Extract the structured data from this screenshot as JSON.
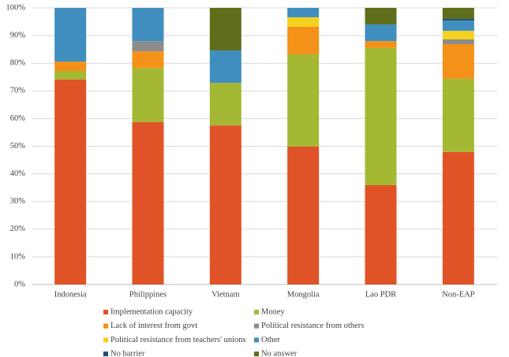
{
  "chart_data": {
    "type": "stacked_bar",
    "categories": [
      "Indonesia",
      "Philippines",
      "Vietnam",
      "Mongolia",
      "Lao PDR",
      "Non-EAP"
    ],
    "series": [
      {
        "name": "Implementation capacity",
        "color": "#e05327",
        "values": [
          74.1,
          58.7,
          57.5,
          49.9,
          35.9,
          47.9
        ]
      },
      {
        "name": "Money",
        "color": "#a5b833",
        "values": [
          3.1,
          19.6,
          15.4,
          33.3,
          49.6,
          26.5
        ]
      },
      {
        "name": "Lack of interest from govt",
        "color": "#f39119",
        "values": [
          3.4,
          6.0,
          0,
          10.0,
          2.5,
          12.5
        ]
      },
      {
        "name": "Political resistance from others",
        "color": "#8c8c8c",
        "values": [
          0,
          3.7,
          0,
          0,
          0,
          1.7
        ]
      },
      {
        "name": "Political resistance from teachers' unions",
        "color": "#f5d21f",
        "values": [
          0,
          0,
          0,
          3.4,
          0,
          3.1
        ]
      },
      {
        "name": "Other",
        "color": "#3f8ebf",
        "values": [
          19.4,
          12.0,
          11.7,
          3.4,
          6.0,
          3.7
        ]
      },
      {
        "name": "No barrier",
        "color": "#1f4e79",
        "values": [
          0,
          0,
          0,
          0,
          0,
          0.6
        ]
      },
      {
        "name": "No answer",
        "color": "#5e6e1a",
        "values": [
          0,
          0,
          15.4,
          0,
          6.0,
          4.0
        ]
      }
    ],
    "ylim": [
      0,
      100
    ],
    "yticks": [
      {
        "value": 0,
        "label": "0%"
      },
      {
        "value": 10,
        "label": "10%"
      },
      {
        "value": 20,
        "label": "20%"
      },
      {
        "value": 30,
        "label": "30%"
      },
      {
        "value": 40,
        "label": "40%"
      },
      {
        "value": 50,
        "label": "50%"
      },
      {
        "value": 60,
        "label": "60%"
      },
      {
        "value": 70,
        "label": "70%"
      },
      {
        "value": 80,
        "label": "80%"
      },
      {
        "value": 90,
        "label": "90%"
      },
      {
        "value": 100,
        "label": "100%"
      }
    ],
    "grid": true
  }
}
